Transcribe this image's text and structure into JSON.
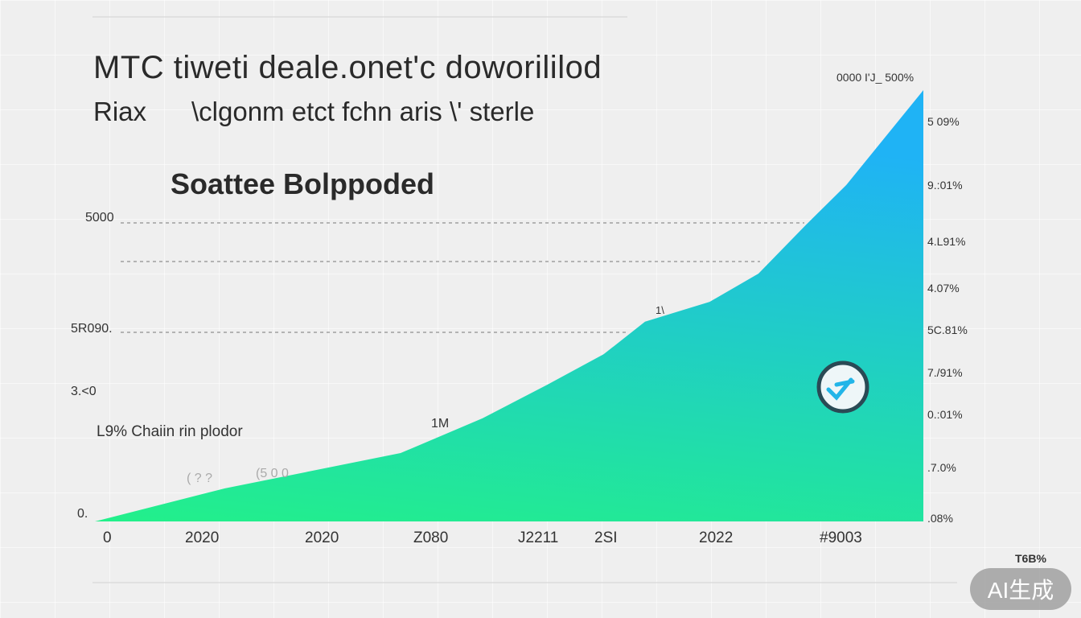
{
  "title": "MTC tiweti deale.onet'c doworililod",
  "subtitle_prefix": "Riax",
  "subtitle": "\\clgonm etct fchn aris \\' sterle",
  "section_label": "Soattee Bolppoded",
  "annotation_left": "L9%  Chaiin rin plodor",
  "annotation_peak": "1M",
  "annotation_mid": "1\\",
  "faint_labels": [
    "( ? ?",
    "(5 0 0"
  ],
  "top_right_label": "0000  I'J_  500%",
  "watermark": "AI生成",
  "corner_label": "T6B%",
  "colors": {
    "area_bottom": "#22f08a",
    "area_top": "#1fb3f5",
    "marker_ring": "#2a4a55",
    "marker_glyph": "#22b5e8"
  },
  "marker_icon": "check-circle-icon",
  "chart_data": {
    "type": "area",
    "title": "MTC tiweti deale.onet'c doworililod",
    "x_tick_labels": [
      "0",
      "2020",
      "2020",
      "Z080",
      "J2211",
      "2SI",
      "2022",
      "#9003"
    ],
    "left_tick_labels": [
      "5000",
      "5R090.",
      "3.<0",
      "0."
    ],
    "right_tick_labels": [
      "5 09%",
      "9.:01%",
      "4.L91%",
      "4.07%",
      "5C.81%",
      "7./91%",
      "0.:01%",
      ".7.0%",
      ".08%"
    ],
    "x": [
      0,
      15.7,
      22.3,
      36.9,
      46.8,
      54.6,
      61.4,
      66.4,
      74.2,
      80.1,
      85.8,
      90.7,
      100
    ],
    "values": [
      0,
      7.5,
      10.0,
      15.5,
      23.4,
      31.0,
      37.9,
      45.3,
      49.8,
      56.2,
      67.2,
      76.3,
      97.8
    ],
    "xlim": [
      0,
      100
    ],
    "ylim": [
      0,
      100
    ],
    "grid": "dashed horizontal",
    "legend": "none"
  }
}
